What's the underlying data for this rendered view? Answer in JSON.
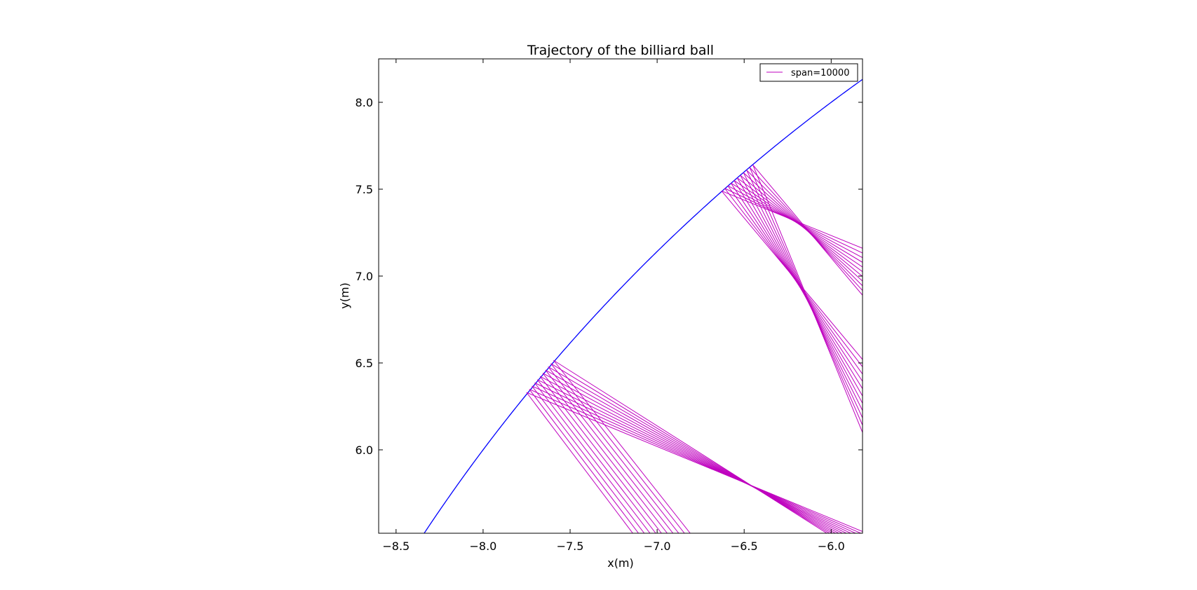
{
  "chart_data": {
    "type": "line",
    "title": "Trajectory of the billiard ball",
    "xlabel": "x(m)",
    "ylabel": "y(m)",
    "xlim": [
      -8.6,
      -5.82
    ],
    "ylim": [
      5.52,
      8.25
    ],
    "xticks": [
      -8.5,
      -8.0,
      -7.5,
      -7.0,
      -6.5,
      -6.0
    ],
    "xtick_labels": [
      "−8.5",
      "−8.0",
      "−7.5",
      "−7.0",
      "−6.5",
      "−6.0"
    ],
    "yticks": [
      6.0,
      6.5,
      7.0,
      7.5,
      8.0
    ],
    "ytick_labels": [
      "6.0",
      "6.5",
      "7.0",
      "7.5",
      "8.0"
    ],
    "grid": false,
    "legend": {
      "position": "top-right",
      "entries": [
        {
          "label": "span=10000",
          "color": "#bf00bf"
        }
      ]
    },
    "boundary": {
      "shape": "circle",
      "radius": 10,
      "color": "#0000ff"
    },
    "series": [
      {
        "name": "span=10000",
        "color": "#bf00bf",
        "count": 11,
        "segments": [
          {
            "from": [
              -7.75,
              6.33
            ],
            "to": [
              -5.82,
              5.53
            ],
            "spread_from": [
              0.155,
              0.185
            ],
            "spread_to": [
              0.0,
              -0.14
            ]
          },
          {
            "from": [
              -7.75,
              6.33
            ],
            "to": [
              -7.14,
              5.52
            ],
            "spread_from": [
              0.155,
              0.185
            ],
            "spread_to": [
              0.33,
              0.0
            ]
          },
          {
            "from": [
              -6.63,
              7.49
            ],
            "to": [
              -5.82,
              7.16
            ],
            "spread_from": [
              0.18,
              0.15
            ],
            "spread_to": [
              0.0,
              -0.27
            ]
          },
          {
            "from": [
              -6.63,
              7.49
            ],
            "to": [
              -5.82,
              6.52
            ],
            "spread_from": [
              0.18,
              0.15
            ],
            "spread_to": [
              0.0,
              -0.42
            ]
          }
        ]
      }
    ]
  }
}
